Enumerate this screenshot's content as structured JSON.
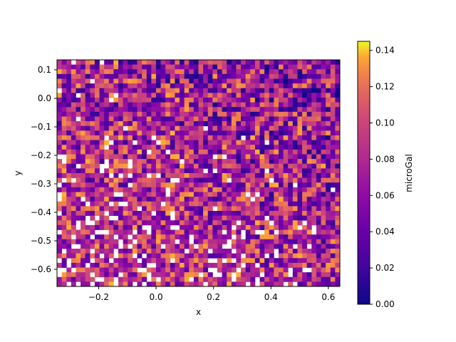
{
  "chart_data": {
    "type": "heatmap",
    "title": "",
    "xlabel": "x",
    "ylabel": "y",
    "xlim": [
      -0.345,
      0.64
    ],
    "ylim": [
      -0.66,
      0.135
    ],
    "xticks": [
      -0.2,
      0.0,
      0.2,
      0.4,
      0.6
    ],
    "xtick_labels": [
      "−0.2",
      "0.0",
      "0.2",
      "0.4",
      "0.6"
    ],
    "yticks": [
      0.1,
      0.0,
      -0.1,
      -0.2,
      -0.3,
      -0.4,
      -0.5,
      -0.6
    ],
    "ytick_labels": [
      "0.1",
      "0.0",
      "−0.1",
      "−0.2",
      "−0.3",
      "−0.4",
      "−0.5",
      "−0.6"
    ],
    "colorbar": {
      "label": "microGal",
      "range": [
        0.0,
        0.145
      ],
      "ticks": [
        0.0,
        0.02,
        0.04,
        0.06,
        0.08,
        0.1,
        0.12,
        0.14
      ],
      "tick_labels": [
        "0.00",
        "0.02",
        "0.04",
        "0.06",
        "0.08",
        "0.10",
        "0.12",
        "0.14"
      ],
      "colormap": "plasma"
    },
    "grid": false,
    "description_of_values": "filled contour of a noisy field; values above 0.145 shown as white (unfilled)"
  }
}
